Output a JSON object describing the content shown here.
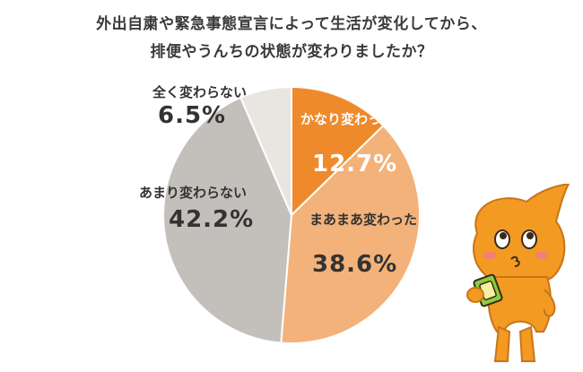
{
  "title": {
    "line1": "外出自粛や緊急事態宣言によって生活が変化してから、",
    "line2": "排便やうんちの状態が変わりましたか？"
  },
  "chart_data": {
    "type": "pie",
    "title": "外出自粛や緊急事態宣言によって生活が変化してから、排便やうんちの状態が変わりましたか？",
    "start_angle_deg": 0,
    "direction": "clockwise",
    "slices": [
      {
        "label": "かなり変わった",
        "value": 12.7,
        "value_label": "12.7%",
        "color": "#ef8a2c"
      },
      {
        "label": "まあまあ変わった",
        "value": 38.6,
        "value_label": "38.6%",
        "color": "#f3b27a"
      },
      {
        "label": "あまり変わらない",
        "value": 42.2,
        "value_label": "42.2%",
        "color": "#c3c0bc"
      },
      {
        "label": "全く変わらない",
        "value": 6.5,
        "value_label": "6.5%",
        "color": "#e9e6e2"
      }
    ]
  },
  "mascot": {
    "icon": "orange-poop-mascot-icon"
  }
}
